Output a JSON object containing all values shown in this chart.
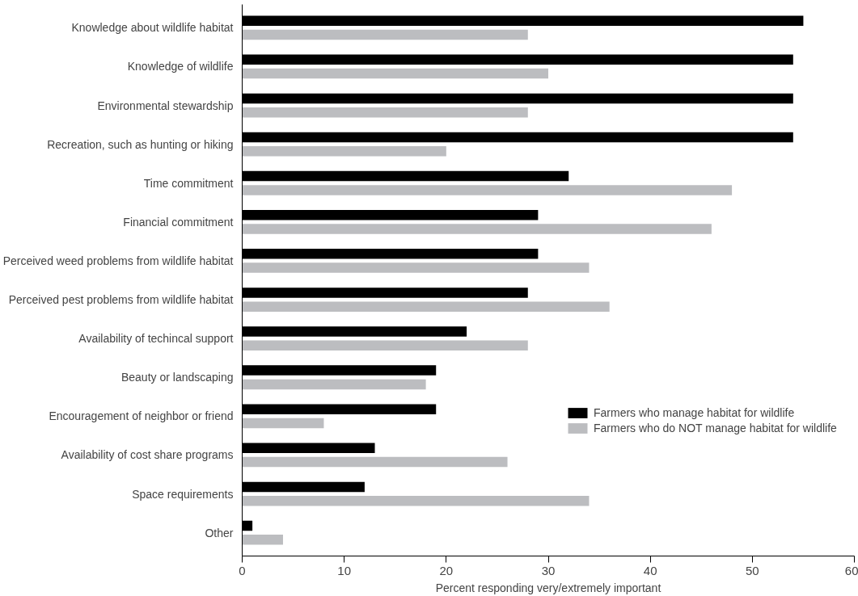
{
  "chart_data": {
    "type": "bar",
    "orientation": "horizontal",
    "xlabel": "Percent responding very/extremely important",
    "categories": [
      "Knowledge about wildlife habitat",
      "Knowledge of wildlife",
      "Environmental stewardship",
      "Recreation, such as hunting or hiking",
      "Time commitment",
      "Financial commitment",
      "Perceived weed problems from wildlife habitat",
      "Perceived pest problems from wildlife habitat",
      "Availability of techincal support",
      "Beauty or landscaping",
      "Encouragement of neighbor or friend",
      "Availability of cost share programs",
      "Space requirements",
      "Other"
    ],
    "series": [
      {
        "name": "Farmers who manage habitat for wildlife",
        "color": "#000000",
        "values": [
          55,
          54,
          54,
          54,
          32,
          29,
          29,
          28,
          22,
          19,
          19,
          13,
          12,
          1
        ]
      },
      {
        "name": "Farmers who do NOT manage habitat for wildlife",
        "color": "#bcbdc0",
        "values": [
          28,
          30,
          28,
          20,
          48,
          46,
          34,
          36,
          28,
          18,
          8,
          26,
          34,
          4
        ]
      }
    ],
    "xlim": [
      0,
      60
    ],
    "xticks": [
      0,
      10,
      20,
      30,
      40,
      50,
      60
    ],
    "grid": false,
    "legend": "right"
  }
}
